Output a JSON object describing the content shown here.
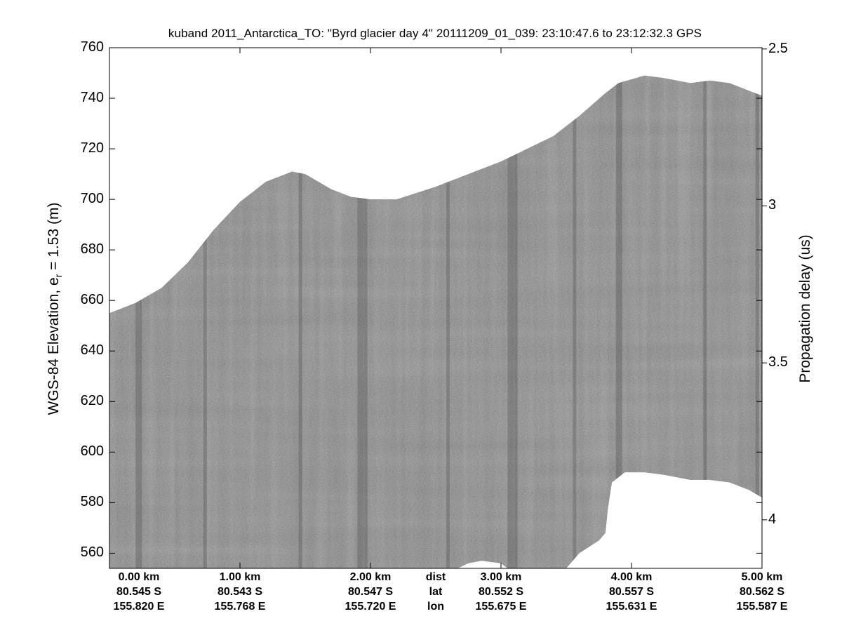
{
  "chart_data": {
    "type": "heatmap",
    "title": "kuband 2011_Antarctica_TO: \"Byrd glacier day 4\"  20111209_01_039: 23:10:47.6 to 23:12:32.3 GPS",
    "ylabel_left": {
      "text": "WGS-84 Elevation, e",
      "sub": "r",
      "suffix": " = 1.53 (m)"
    },
    "ylabel_right": "Propagation delay (us)",
    "xlim_km": [
      0,
      5.0
    ],
    "ylim_m": [
      554,
      760
    ],
    "yticks_left": [
      560,
      580,
      600,
      620,
      640,
      660,
      680,
      700,
      720,
      740,
      760
    ],
    "yticks_right": [
      {
        "label": "2.5",
        "elev": 759.5
      },
      {
        "label": "3",
        "elev": 697.4
      },
      {
        "label": "3.5",
        "elev": 635.3
      },
      {
        "label": "4",
        "elev": 573.2
      }
    ],
    "xticks": [
      {
        "km": 0.0,
        "dist": "0.00 km",
        "lat": "80.545 S",
        "lon": "155.820 E"
      },
      {
        "km": 1.0,
        "dist": "1.00 km",
        "lat": "80.543 S",
        "lon": "155.768 E"
      },
      {
        "km": 2.0,
        "dist": "2.00 km",
        "lat": "80.547 S",
        "lon": "155.720 E"
      },
      {
        "km": 2.5,
        "dist": "dist",
        "lat": "lat",
        "lon": "lon"
      },
      {
        "km": 3.0,
        "dist": "3.00 km",
        "lat": "80.552 S",
        "lon": "155.675 E"
      },
      {
        "km": 4.0,
        "dist": "4.00 km",
        "lat": "80.557 S",
        "lon": "155.631 E"
      },
      {
        "km": 5.0,
        "dist": "5.00 km",
        "lat": "80.562 S",
        "lon": "155.587 E"
      }
    ],
    "surface_top_m": [
      [
        0.0,
        655
      ],
      [
        0.2,
        659
      ],
      [
        0.4,
        665
      ],
      [
        0.6,
        675
      ],
      [
        0.8,
        688
      ],
      [
        1.0,
        699
      ],
      [
        1.2,
        707
      ],
      [
        1.4,
        711
      ],
      [
        1.5,
        710
      ],
      [
        1.7,
        704
      ],
      [
        1.85,
        701
      ],
      [
        2.0,
        700
      ],
      [
        2.2,
        700
      ],
      [
        2.5,
        705
      ],
      [
        2.8,
        711
      ],
      [
        3.0,
        715
      ],
      [
        3.2,
        720
      ],
      [
        3.4,
        725
      ],
      [
        3.6,
        733
      ],
      [
        3.8,
        742
      ],
      [
        3.9,
        746
      ],
      [
        4.1,
        749
      ],
      [
        4.25,
        748
      ],
      [
        4.45,
        746
      ],
      [
        4.6,
        747
      ],
      [
        4.75,
        746
      ],
      [
        4.9,
        743
      ],
      [
        5.0,
        741
      ]
    ],
    "data_bottom_m": [
      [
        0.0,
        554
      ],
      [
        2.67,
        554
      ],
      [
        2.75,
        556
      ],
      [
        2.85,
        557
      ],
      [
        3.0,
        556
      ],
      [
        3.05,
        554
      ],
      [
        3.5,
        554
      ],
      [
        3.6,
        560
      ],
      [
        3.75,
        565
      ],
      [
        3.8,
        568
      ],
      [
        3.82,
        578
      ],
      [
        3.85,
        588
      ],
      [
        3.95,
        592
      ],
      [
        4.1,
        592
      ],
      [
        4.25,
        591
      ],
      [
        4.45,
        589
      ],
      [
        4.6,
        589
      ],
      [
        4.75,
        588
      ],
      [
        4.9,
        585
      ],
      [
        5.0,
        582
      ]
    ],
    "image_rgb_gray": [
      128,
      128,
      128
    ]
  }
}
